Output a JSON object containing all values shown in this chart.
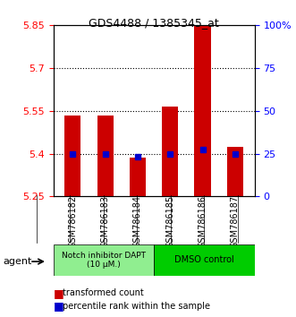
{
  "title": "GDS4488 / 1385345_at",
  "samples": [
    "GSM786182",
    "GSM786183",
    "GSM786184",
    "GSM786185",
    "GSM786186",
    "GSM786187"
  ],
  "red_values": [
    5.535,
    5.535,
    5.385,
    5.565,
    5.88,
    5.425
  ],
  "blue_values": [
    5.4,
    5.4,
    5.39,
    5.4,
    5.415,
    5.4
  ],
  "ylim_left": [
    5.25,
    5.85
  ],
  "ylim_right": [
    0,
    100
  ],
  "yticks_left": [
    5.25,
    5.4,
    5.55,
    5.7,
    5.85
  ],
  "yticks_right": [
    0,
    25,
    50,
    75,
    100
  ],
  "ytick_labels_right": [
    "0",
    "25",
    "50",
    "75",
    "100%"
  ],
  "grid_lines": [
    5.4,
    5.55,
    5.7
  ],
  "bar_bottom": 5.25,
  "bar_width": 0.5,
  "groups": [
    {
      "label": "Notch inhibitor DAPT\n(10 μM.)",
      "samples": [
        0,
        1,
        2
      ],
      "color": "#90ee90"
    },
    {
      "label": "DMSO control",
      "samples": [
        3,
        4,
        5
      ],
      "color": "#00cc00"
    }
  ],
  "agent_label": "agent",
  "legend_red": "transformed count",
  "legend_blue": "percentile rank within the sample",
  "red_color": "#cc0000",
  "blue_color": "#0000cc",
  "bar_base": 5.25
}
